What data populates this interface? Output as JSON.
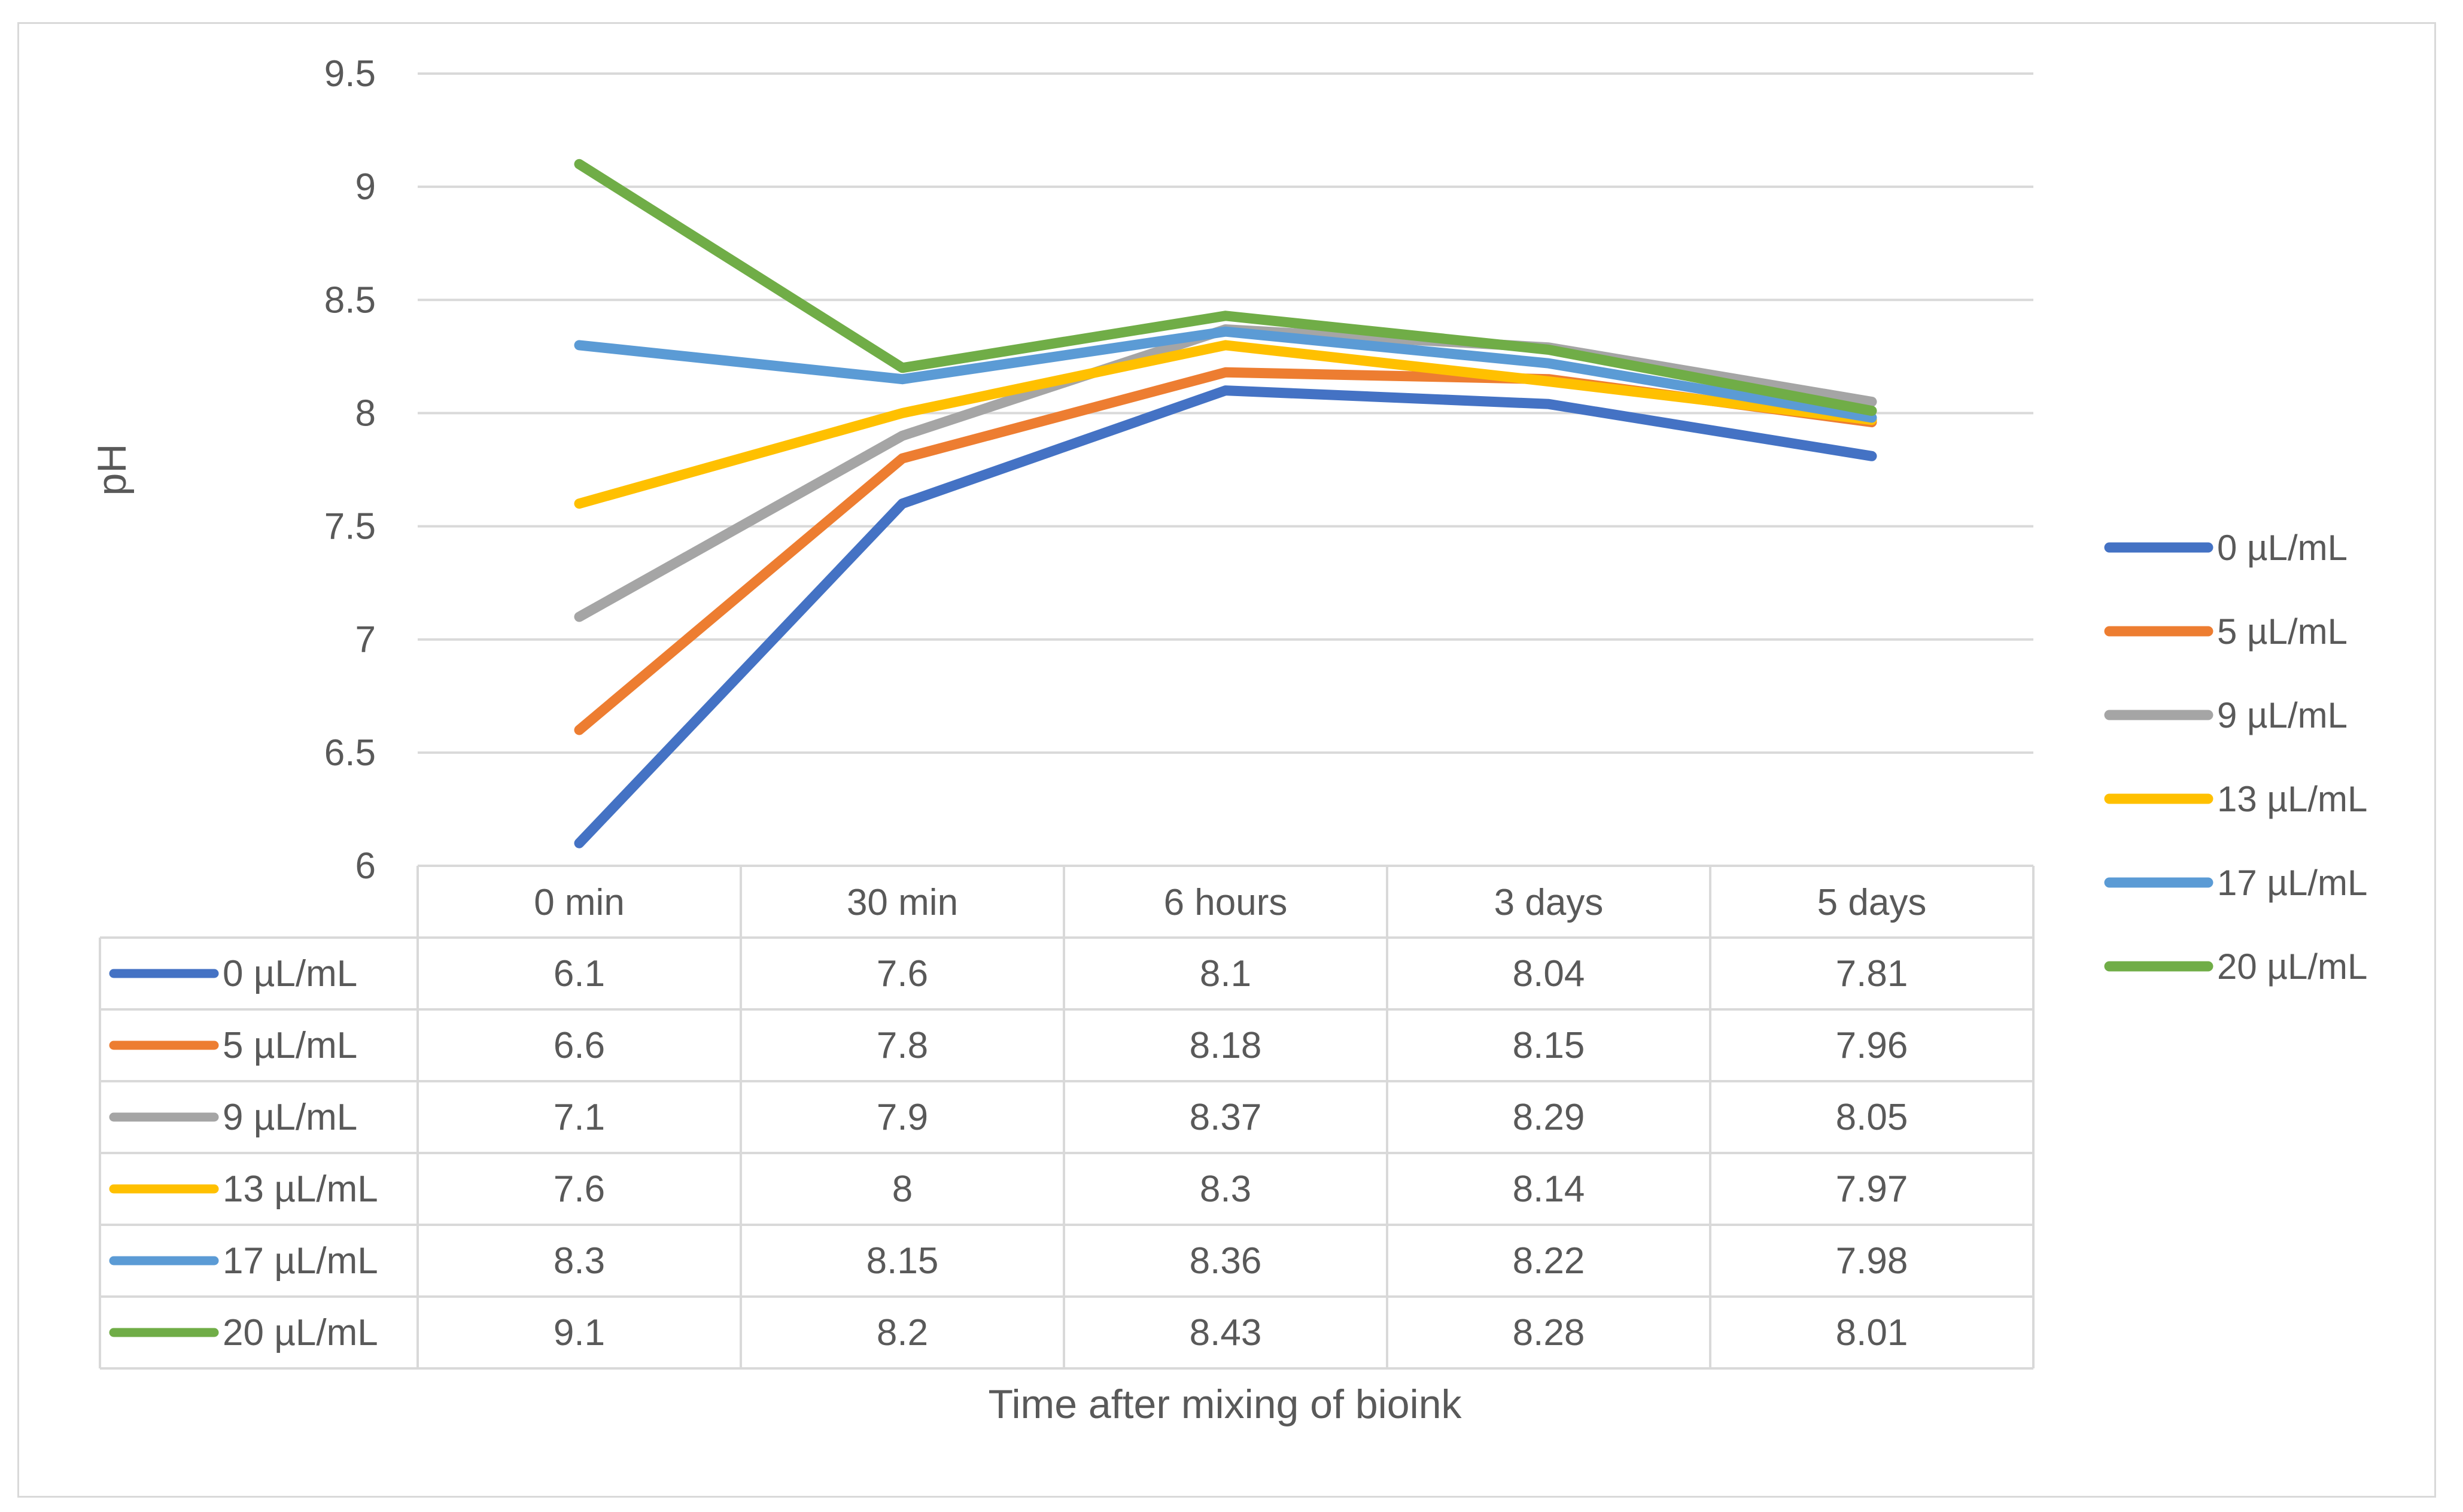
{
  "chart_data": {
    "type": "line",
    "title": "",
    "xlabel": "Time after mixing of bioink",
    "ylabel": "pH",
    "ylim": [
      6,
      9.5
    ],
    "yticks": [
      "6",
      "6.5",
      "7",
      "7.5",
      "8",
      "8.5",
      "9",
      "9.5"
    ],
    "categories": [
      "0 min",
      "30 min",
      "6 hours",
      "3 days",
      "5 days"
    ],
    "grid": true,
    "legend_position": "right",
    "data_table": true,
    "series": [
      {
        "name": "0 µL/mL",
        "color": "#4472C4",
        "values": [
          6.1,
          7.6,
          8.1,
          8.04,
          7.81
        ],
        "labels": [
          "6.1",
          "7.6",
          "8.1",
          "8.04",
          "7.81"
        ]
      },
      {
        "name": "5  µL/mL",
        "color": "#ED7D31",
        "values": [
          6.6,
          7.8,
          8.18,
          8.15,
          7.96
        ],
        "labels": [
          "6.6",
          "7.8",
          "8.18",
          "8.15",
          "7.96"
        ]
      },
      {
        "name": "9  µL/mL",
        "color": "#A5A5A5",
        "values": [
          7.1,
          7.9,
          8.37,
          8.29,
          8.05
        ],
        "labels": [
          "7.1",
          "7.9",
          "8.37",
          "8.29",
          "8.05"
        ]
      },
      {
        "name": "13  µL/mL",
        "color": "#FFC000",
        "values": [
          7.6,
          8,
          8.3,
          8.14,
          7.97
        ],
        "labels": [
          "7.6",
          "8",
          "8.3",
          "8.14",
          "7.97"
        ]
      },
      {
        "name": "17  µL/mL",
        "color": "#5B9BD5",
        "values": [
          8.3,
          8.15,
          8.36,
          8.22,
          7.98
        ],
        "labels": [
          "8.3",
          "8.15",
          "8.36",
          "8.22",
          "7.98"
        ]
      },
      {
        "name": "20  µL/mL",
        "color": "#70AD47",
        "values": [
          9.1,
          8.2,
          8.43,
          8.28,
          8.01
        ],
        "labels": [
          "9.1",
          "8.2",
          "8.43",
          "8.28",
          "8.01"
        ]
      }
    ]
  }
}
